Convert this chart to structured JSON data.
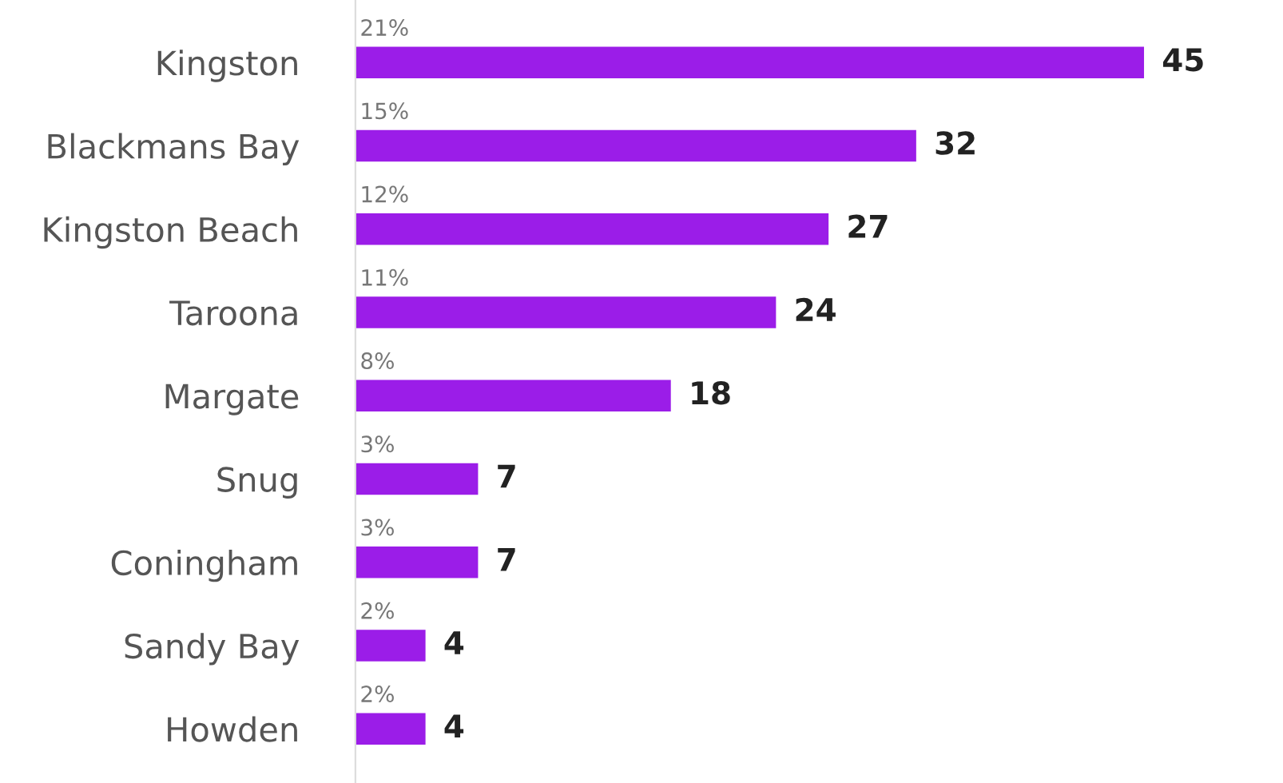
{
  "chart_data": {
    "type": "bar",
    "orientation": "horizontal",
    "categories": [
      "Kingston",
      "Blackmans Bay",
      "Kingston Beach",
      "Taroona",
      "Margate",
      "Snug",
      "Coningham",
      "Sandy Bay",
      "Howden"
    ],
    "values": [
      45,
      32,
      27,
      24,
      18,
      7,
      7,
      4,
      4
    ],
    "color": "#9b1de8",
    "data_labels": true,
    "annotations": [
      "21%",
      "15%",
      "12%",
      "11%",
      "8%",
      "3%",
      "3%",
      "2%",
      "2%"
    ],
    "grid": false,
    "legend": false,
    "tick_labels": "y"
  }
}
